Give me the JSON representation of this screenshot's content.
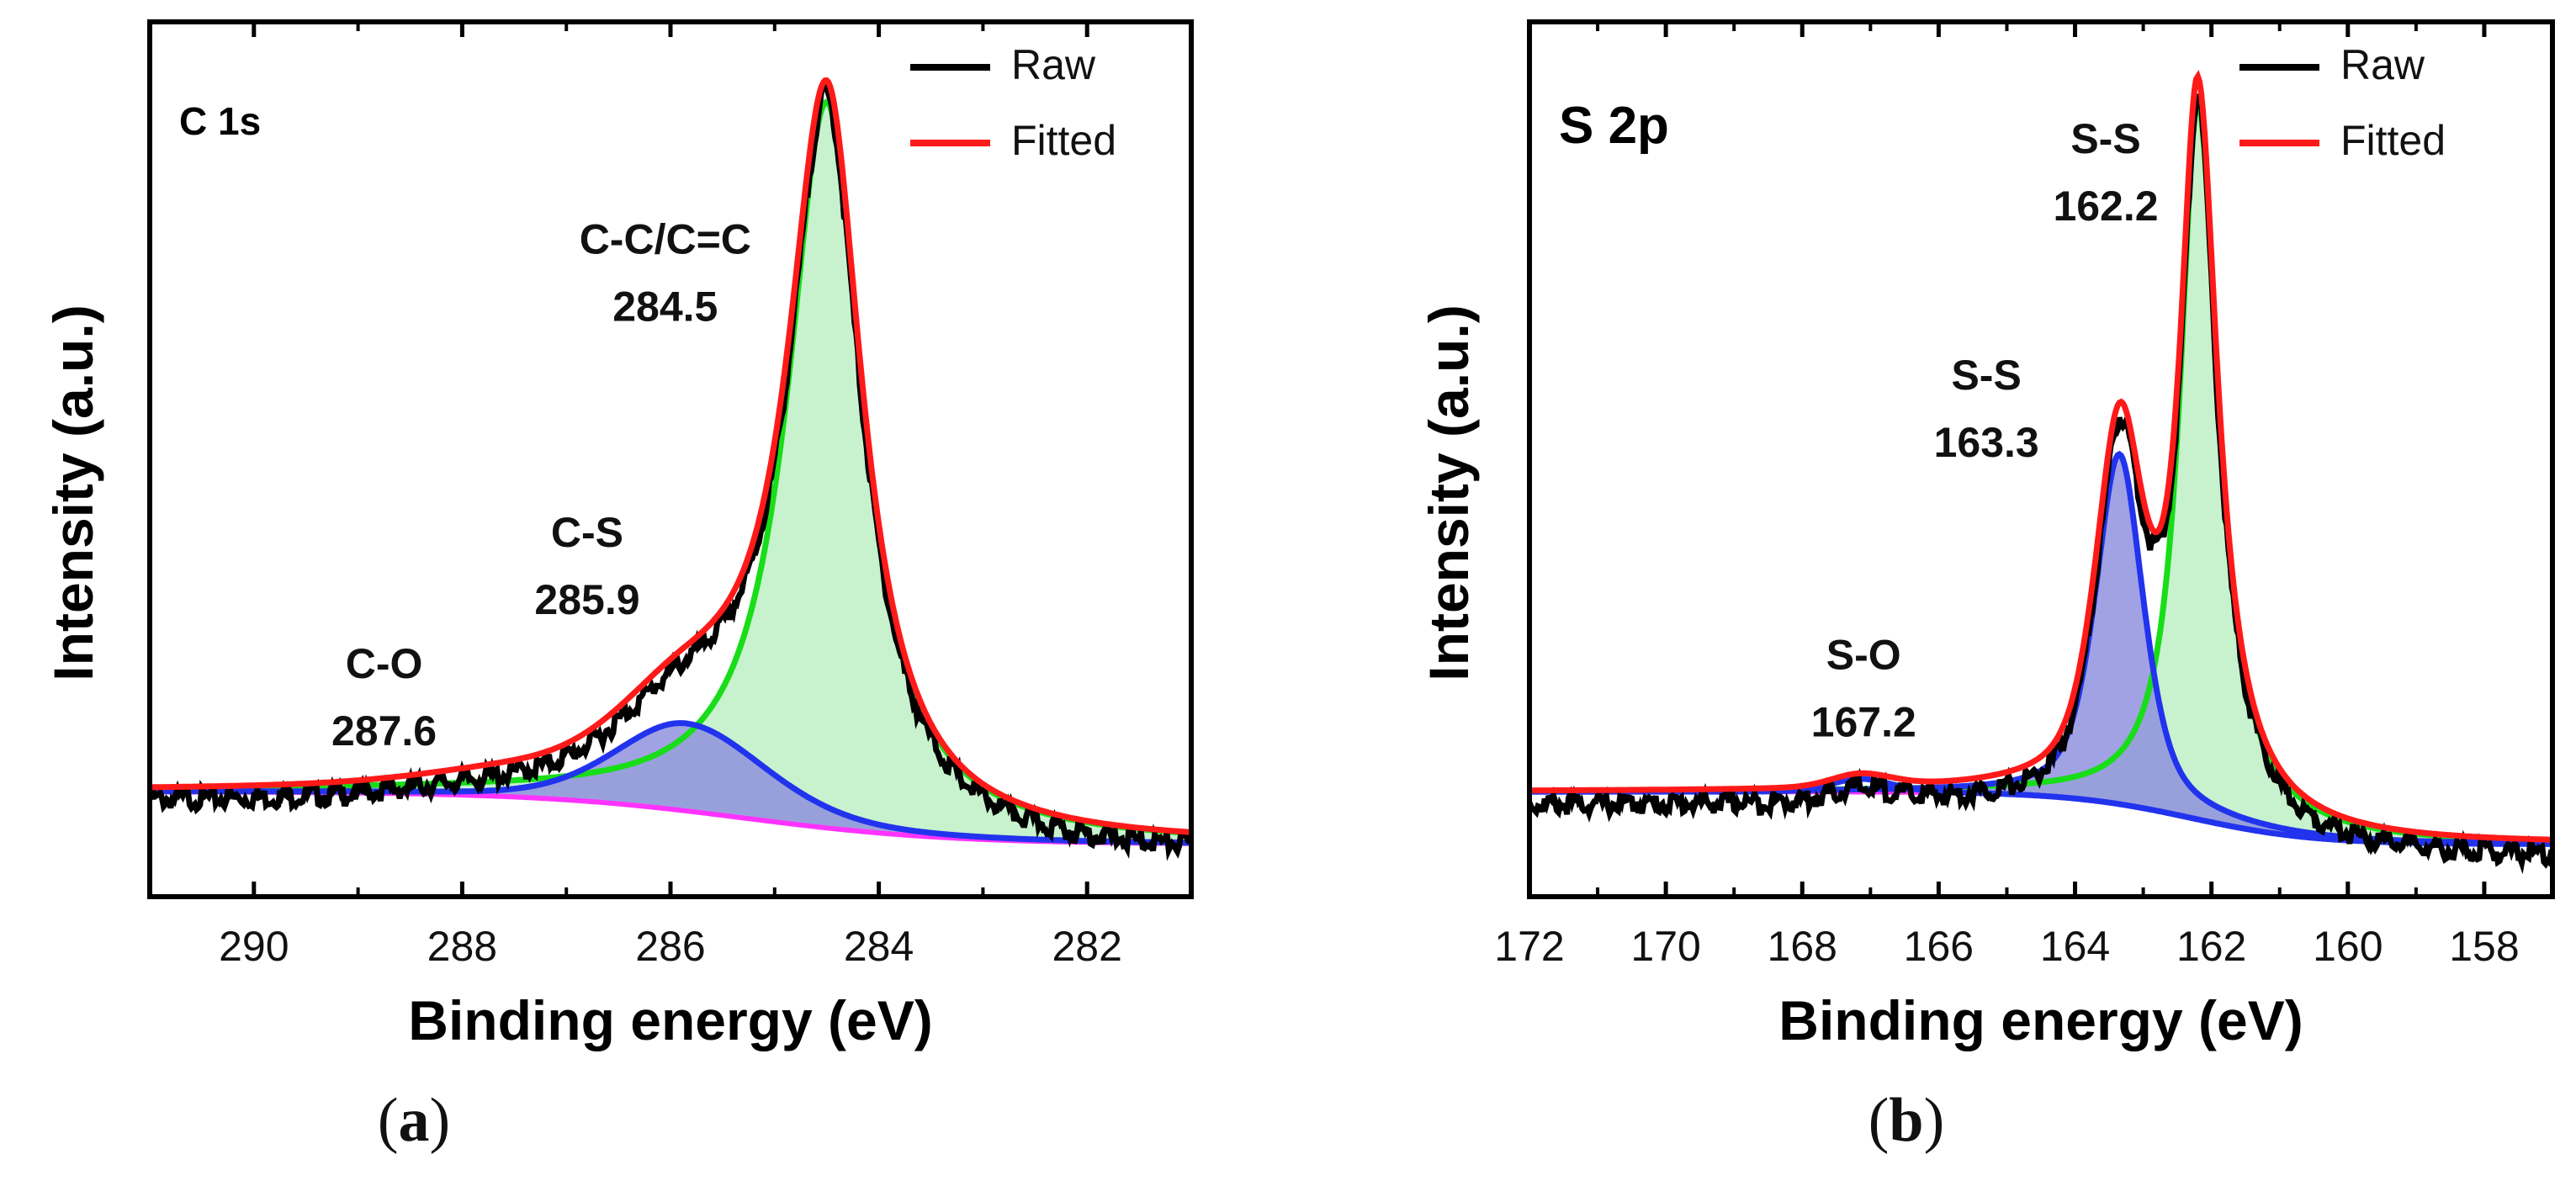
{
  "chart_data": [
    {
      "type": "line",
      "panel": "(a)",
      "caption_open": "(",
      "caption_letter": "a",
      "caption_close": ")",
      "title": "C 1s",
      "xlabel": "Binding energy (eV)",
      "ylabel": "Intensity (a.u.)",
      "xlim": [
        291,
        281
      ],
      "ylim": [
        0,
        1
      ],
      "xticks": [
        290,
        288,
        286,
        284,
        282
      ],
      "tick_labels": [
        "290",
        "288",
        "286",
        "284",
        "282"
      ],
      "legend": {
        "position": "top-right",
        "entries": [
          {
            "name": "Raw",
            "color": "#000000"
          },
          {
            "name": "Fitted",
            "color": "#ff1a1a"
          }
        ]
      },
      "background": {
        "type": "shirley",
        "start": 0.12,
        "end": 0.06,
        "center": 285.3,
        "width": 1.0,
        "color": "#ff33ff"
      },
      "components": [
        {
          "label": "C-C/C=C",
          "position": "284.5",
          "center": 284.5,
          "height": 0.83,
          "gl": 1.0,
          "wl": 0.46,
          "wr": 0.42,
          "fill": "#bdf0c4",
          "line": "#18dd18"
        },
        {
          "label": "C-S",
          "position": "285.9",
          "center": 285.85,
          "height": 0.1,
          "gl": 0.3,
          "wl": 0.8,
          "wr": 0.9,
          "fill": "#8f92de",
          "line": "#2233ee"
        },
        {
          "label": "C-O",
          "position": "287.6",
          "center": 287.6,
          "height": 0.014,
          "gl": 0.4,
          "wl": 1.0,
          "wr": 1.0,
          "fill": "none",
          "line": "none"
        }
      ],
      "raw_offset": -0.008,
      "annotations": [
        {
          "name": "C-C/C=C",
          "value": "284.5",
          "x": 286.05,
          "y": 0.735
        },
        {
          "name": "C-S",
          "value": "285.9",
          "x": 286.8,
          "y": 0.4
        },
        {
          "name": "C-O",
          "value": "287.6",
          "x": 288.75,
          "y": 0.25
        }
      ]
    },
    {
      "type": "line",
      "panel": "(b)",
      "caption_open": "(",
      "caption_letter": "b",
      "caption_close": ")",
      "title": "S 2p",
      "xlabel": "Binding energy (eV)",
      "ylabel": "Intensity (a.u.)",
      "xlim": [
        172,
        157
      ],
      "ylim": [
        0,
        1
      ],
      "xticks": [
        172,
        170,
        168,
        166,
        164,
        162,
        160,
        158
      ],
      "tick_labels": [
        "172",
        "170",
        "168",
        "166",
        "164",
        "162",
        "160",
        "158"
      ],
      "legend": {
        "position": "top-right",
        "entries": [
          {
            "name": "Raw",
            "color": "#000000"
          },
          {
            "name": "Fitted",
            "color": "#ff1a1a"
          }
        ]
      },
      "background": {
        "type": "shirley",
        "start": 0.12,
        "end": 0.06,
        "center": 162.3,
        "width": 0.9,
        "color": "#ff33ff"
      },
      "components": [
        {
          "label": "S-S",
          "position": "162.2",
          "center": 162.2,
          "height": 0.82,
          "gl": 1.0,
          "wl": 0.32,
          "wr": 0.36,
          "fill": "#bdf0c4",
          "line": "#18dd18"
        },
        {
          "label": "S-S",
          "position": "163.3",
          "center": 163.35,
          "height": 0.4,
          "gl": 0.6,
          "wl": 0.42,
          "wr": 0.42,
          "fill": "#8f92de",
          "line": "#2233ee"
        },
        {
          "label": "S-O",
          "position": "167.2",
          "center": 167.15,
          "height": 0.015,
          "gl": 0.2,
          "wl": 0.5,
          "wr": 0.55,
          "fill": "none",
          "line": "#2233ee"
        }
      ],
      "raw_offset": -0.01,
      "annotations": [
        {
          "name": "S-S",
          "value": "162.2",
          "x": 163.55,
          "y": 0.85
        },
        {
          "name": "S-S",
          "value": "163.3",
          "x": 165.3,
          "y": 0.58
        },
        {
          "name": "S-O",
          "value": "167.2",
          "x": 167.1,
          "y": 0.26
        }
      ]
    }
  ]
}
